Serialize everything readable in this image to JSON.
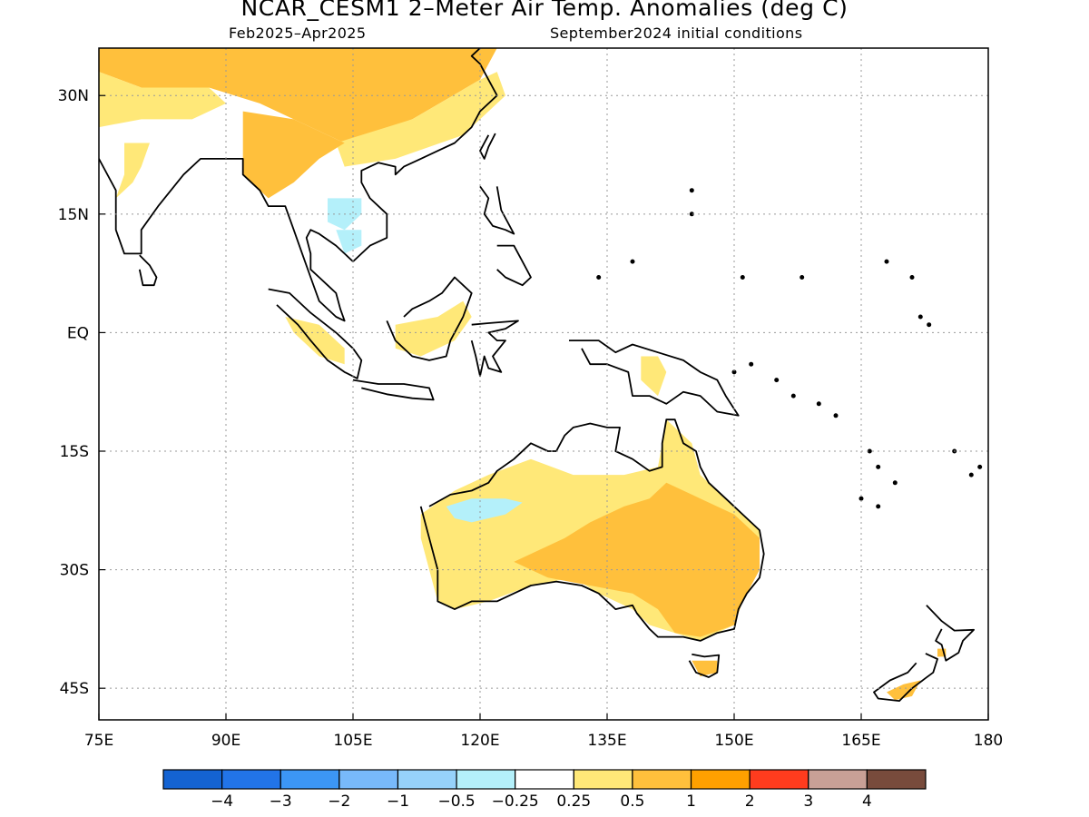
{
  "title": "NCAR_CESM1 2–Meter Air Temp. Anomalies (deg C)",
  "subtitle_left": "Feb2025–Apr2025",
  "subtitle_right": "September2024 initial conditions",
  "map": {
    "lon_range": [
      75,
      180
    ],
    "lat_range": [
      -49,
      36
    ],
    "lon_ticks": [
      {
        "value": 75,
        "label": "75E"
      },
      {
        "value": 90,
        "label": "90E"
      },
      {
        "value": 105,
        "label": "105E"
      },
      {
        "value": 120,
        "label": "120E"
      },
      {
        "value": 135,
        "label": "135E"
      },
      {
        "value": 150,
        "label": "150E"
      },
      {
        "value": 165,
        "label": "165E"
      },
      {
        "value": 180,
        "label": "180"
      }
    ],
    "lat_ticks": [
      {
        "value": 30,
        "label": "30N"
      },
      {
        "value": 15,
        "label": "15N"
      },
      {
        "value": 0,
        "label": "EQ"
      },
      {
        "value": -15,
        "label": "15S"
      },
      {
        "value": -30,
        "label": "30S"
      },
      {
        "value": -45,
        "label": "45S"
      }
    ],
    "grid": true,
    "anomaly_regions": [
      {
        "name": "Tibet / China warm",
        "level": "1",
        "points": [
          [
            75,
            36
          ],
          [
            122,
            36
          ],
          [
            120,
            32
          ],
          [
            112,
            27
          ],
          [
            104,
            24
          ],
          [
            98,
            27
          ],
          [
            94,
            29
          ],
          [
            88,
            31
          ],
          [
            80,
            31
          ],
          [
            75,
            33
          ]
        ]
      },
      {
        "name": "Tibet core",
        "level": "1",
        "points": [
          [
            94,
            35.5
          ],
          [
            103,
            35.5
          ],
          [
            102,
            32
          ],
          [
            97,
            31.5
          ],
          [
            94,
            33
          ]
        ]
      },
      {
        "name": "India north",
        "level": "0.5",
        "points": [
          [
            75,
            33
          ],
          [
            80,
            31
          ],
          [
            88,
            31
          ],
          [
            90,
            29
          ],
          [
            86,
            27
          ],
          [
            80,
            27
          ],
          [
            75,
            26
          ]
        ]
      },
      {
        "name": "China east",
        "level": "0.5",
        "points": [
          [
            103,
            24
          ],
          [
            112,
            27
          ],
          [
            120,
            32
          ],
          [
            122,
            33
          ],
          [
            123,
            30
          ],
          [
            118,
            25
          ],
          [
            110,
            22
          ],
          [
            104,
            21
          ]
        ]
      },
      {
        "name": "Myanmar",
        "level": "1",
        "points": [
          [
            92,
            28
          ],
          [
            98,
            27
          ],
          [
            104,
            24
          ],
          [
            101,
            22
          ],
          [
            98,
            19
          ],
          [
            95,
            17
          ],
          [
            92,
            20
          ]
        ]
      },
      {
        "name": "India west",
        "level": "0.5",
        "points": [
          [
            78,
            24
          ],
          [
            81,
            24
          ],
          [
            80,
            21
          ],
          [
            79,
            19
          ],
          [
            77,
            17
          ],
          [
            78,
            20
          ]
        ]
      },
      {
        "name": "Laos cool",
        "level": "-0.25",
        "points": [
          [
            102,
            17
          ],
          [
            106,
            17
          ],
          [
            106,
            15
          ],
          [
            104,
            13
          ],
          [
            102,
            14
          ]
        ]
      },
      {
        "name": "Cambodia cool",
        "level": "-0.25",
        "points": [
          [
            103,
            13
          ],
          [
            106,
            13
          ],
          [
            106,
            11
          ],
          [
            104,
            10
          ]
        ]
      },
      {
        "name": "Sumatra",
        "level": "0.5",
        "points": [
          [
            97,
            2
          ],
          [
            101,
            1
          ],
          [
            104,
            -2
          ],
          [
            104,
            -4
          ],
          [
            101,
            -3
          ],
          [
            98,
            0
          ]
        ]
      },
      {
        "name": "Borneo",
        "level": "0.5",
        "points": [
          [
            110,
            1
          ],
          [
            115,
            2
          ],
          [
            118,
            4
          ],
          [
            119,
            2
          ],
          [
            117,
            -1
          ],
          [
            113,
            -3
          ],
          [
            110,
            -2
          ]
        ]
      },
      {
        "name": "New Guinea",
        "level": "0.5",
        "points": [
          [
            139,
            -3
          ],
          [
            141,
            -3
          ],
          [
            142,
            -5
          ],
          [
            141,
            -8
          ],
          [
            139,
            -6
          ]
        ]
      },
      {
        "name": "Australia light",
        "level": "0.5",
        "points": [
          [
            113,
            -23
          ],
          [
            117,
            -20
          ],
          [
            121,
            -18
          ],
          [
            126,
            -16
          ],
          [
            131,
            -18
          ],
          [
            137,
            -18
          ],
          [
            141,
            -17
          ],
          [
            142,
            -11
          ],
          [
            145,
            -14
          ],
          [
            146,
            -18
          ],
          [
            148,
            -20
          ],
          [
            150,
            -22
          ],
          [
            153,
            -25
          ],
          [
            153,
            -30
          ],
          [
            151,
            -34
          ],
          [
            150,
            -37
          ],
          [
            146,
            -39
          ],
          [
            143,
            -38
          ],
          [
            140,
            -37
          ],
          [
            138,
            -35
          ],
          [
            134,
            -33
          ],
          [
            131,
            -31
          ],
          [
            126,
            -32
          ],
          [
            121,
            -34
          ],
          [
            117,
            -35
          ],
          [
            115,
            -34
          ],
          [
            114,
            -30
          ],
          [
            113,
            -26
          ]
        ]
      },
      {
        "name": "Australia warm",
        "level": "1",
        "points": [
          [
            124,
            -29
          ],
          [
            130,
            -26
          ],
          [
            133,
            -24
          ],
          [
            137,
            -22
          ],
          [
            140,
            -21
          ],
          [
            142,
            -19
          ],
          [
            146,
            -21
          ],
          [
            150,
            -23
          ],
          [
            153,
            -26
          ],
          [
            153,
            -30
          ],
          [
            151,
            -34
          ],
          [
            150,
            -37
          ],
          [
            146,
            -38.5
          ],
          [
            143,
            -38
          ],
          [
            141,
            -35
          ],
          [
            138,
            -33
          ],
          [
            133,
            -32
          ],
          [
            128,
            -31
          ]
        ]
      },
      {
        "name": "NW Australia cool",
        "level": "-0.25",
        "points": [
          [
            116,
            -22
          ],
          [
            119,
            -21
          ],
          [
            123,
            -21
          ],
          [
            125,
            -21.5
          ],
          [
            123,
            -23
          ],
          [
            119,
            -24
          ],
          [
            117,
            -23.5
          ]
        ]
      },
      {
        "name": "Tasmania",
        "level": "1",
        "points": [
          [
            145,
            -41.5
          ],
          [
            148,
            -41.5
          ],
          [
            148,
            -43
          ],
          [
            146,
            -43.5
          ]
        ]
      },
      {
        "name": "New Zealand South",
        "level": "1",
        "points": [
          [
            168,
            -45.5
          ],
          [
            170,
            -44.5
          ],
          [
            172,
            -44
          ],
          [
            171,
            -46
          ],
          [
            169,
            -46.5
          ]
        ]
      },
      {
        "name": "New Zealand North",
        "level": "1",
        "points": [
          [
            174,
            -40
          ],
          [
            175,
            -40
          ],
          [
            175,
            -41
          ],
          [
            174,
            -41
          ]
        ]
      }
    ]
  },
  "colorbar": {
    "colors": [
      "#1463d2",
      "#2274e8",
      "#3c96f5",
      "#78b9fa",
      "#96d2fa",
      "#b4f0fa",
      "#ffffff",
      "#ffe878",
      "#ffc03c",
      "#ffa000",
      "#ff3c1e",
      "#c8a096",
      "#784b3c"
    ],
    "labels": [
      "−4",
      "−3",
      "−2",
      "−1",
      "−0.5",
      "−0.25",
      "0.25",
      "0.5",
      "1",
      "2",
      "3",
      "4"
    ]
  },
  "level_colors": {
    "-0.25": "#b4f0fa",
    "0.5": "#ffe878",
    "1": "#ffc03c"
  }
}
